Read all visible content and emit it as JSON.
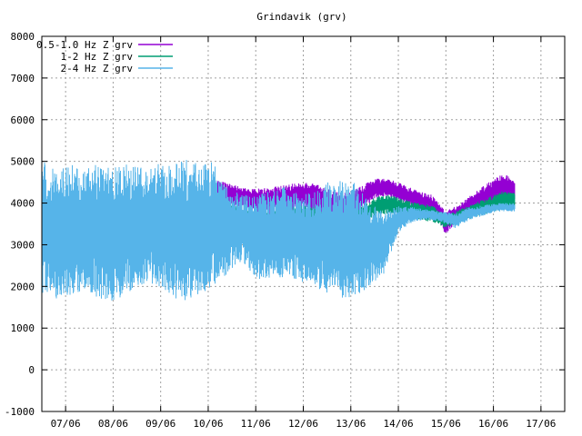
{
  "chart_data": {
    "type": "line",
    "title": "Grindavik (grv)",
    "xlabel": "",
    "ylabel": "",
    "ylim": [
      -1000,
      8000
    ],
    "yticks": [
      -1000,
      0,
      1000,
      2000,
      3000,
      4000,
      5000,
      6000,
      7000,
      8000
    ],
    "xlim_days": [
      6.5,
      17.5
    ],
    "xtick_days": [
      7,
      8,
      9,
      10,
      11,
      12,
      13,
      14,
      15,
      16,
      17
    ],
    "xticks": [
      "07/06",
      "08/06",
      "09/06",
      "10/06",
      "11/06",
      "12/06",
      "13/06",
      "14/06",
      "15/06",
      "16/06",
      "17/06"
    ],
    "grid": true,
    "legend_position": "top-left",
    "series": [
      {
        "name": "0.5-1.0 Hz Z grv",
        "color": "#9400d3",
        "x_days": [
          10.2,
          10.5,
          10.8,
          11.1,
          11.4,
          11.7,
          12.0,
          12.3,
          12.6,
          12.9,
          13.2,
          13.5,
          13.8,
          14.1,
          14.4,
          14.7,
          15.0,
          15.3,
          15.6,
          15.9,
          16.2,
          16.45
        ],
        "low": [
          4000,
          3950,
          3850,
          3700,
          3750,
          3800,
          3900,
          3750,
          3700,
          3650,
          3800,
          4100,
          4150,
          4000,
          3850,
          3750,
          3250,
          3600,
          3800,
          3950,
          4050,
          4100
        ],
        "high": [
          4550,
          4450,
          4350,
          4350,
          4400,
          4450,
          4500,
          4450,
          4300,
          4250,
          4400,
          4600,
          4600,
          4450,
          4300,
          4200,
          3800,
          4000,
          4250,
          4500,
          4700,
          4600
        ]
      },
      {
        "name": "1-2 Hz Z grv",
        "color": "#009e73",
        "x_days": [
          10.2,
          10.5,
          10.8,
          11.1,
          11.4,
          11.7,
          12.0,
          12.3,
          12.6,
          12.9,
          13.2,
          13.5,
          13.8,
          14.1,
          14.4,
          14.7,
          15.0,
          15.3,
          15.6,
          15.9,
          16.2,
          16.45
        ],
        "low": [
          3600,
          3500,
          3400,
          3300,
          3350,
          3400,
          3500,
          3400,
          3350,
          3300,
          3450,
          3700,
          3750,
          3700,
          3600,
          3550,
          3400,
          3550,
          3650,
          3750,
          3850,
          3900
        ],
        "high": [
          4050,
          3950,
          3850,
          3800,
          3850,
          3900,
          3950,
          3900,
          3850,
          3800,
          3900,
          4150,
          4200,
          4100,
          4000,
          3950,
          3700,
          3850,
          4000,
          4150,
          4300,
          4250
        ]
      },
      {
        "name": "2-4 Hz Z grv",
        "color": "#56b4e9",
        "x_days": [
          6.5,
          6.8,
          7.1,
          7.4,
          7.7,
          8.0,
          8.3,
          8.6,
          8.9,
          9.2,
          9.5,
          9.8,
          10.1,
          10.4,
          10.7,
          11.0,
          11.3,
          11.6,
          11.9,
          12.2,
          12.5,
          12.8,
          13.1,
          13.4,
          13.7,
          14.0,
          14.3,
          14.6,
          14.9,
          15.2,
          15.5,
          15.8,
          16.1,
          16.45
        ],
        "low": [
          1850,
          1700,
          1750,
          1950,
          1700,
          1600,
          1850,
          2050,
          2000,
          1700,
          1650,
          1800,
          1950,
          2300,
          2600,
          2200,
          2100,
          2200,
          2150,
          2000,
          1850,
          1700,
          1750,
          2000,
          2300,
          3300,
          3550,
          3600,
          3550,
          3400,
          3600,
          3700,
          3800,
          3800
        ],
        "high": [
          5000,
          4900,
          4950,
          4800,
          4950,
          4850,
          4950,
          4900,
          5000,
          4900,
          5050,
          4950,
          5000,
          4350,
          4250,
          4150,
          4350,
          4450,
          4200,
          4250,
          4500,
          4550,
          4500,
          4000,
          3800,
          3950,
          3900,
          3850,
          3800,
          3750,
          3900,
          3950,
          4000,
          4000
        ]
      }
    ]
  }
}
